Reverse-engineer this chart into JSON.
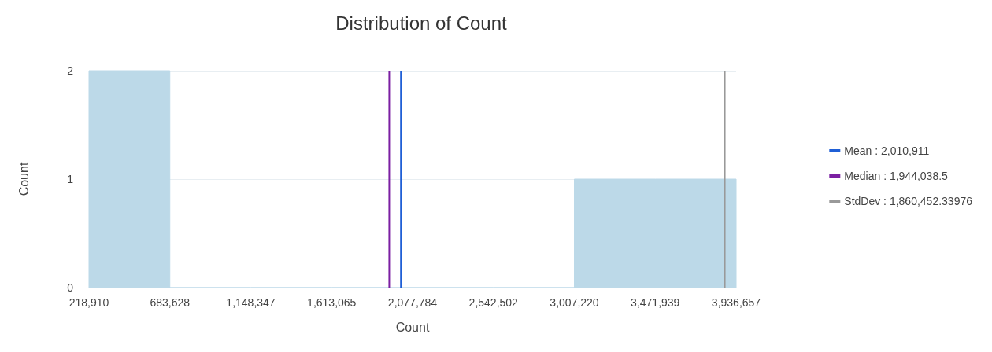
{
  "chart_data": {
    "type": "histogram",
    "title": "Distribution of Count",
    "xlabel": "Count",
    "ylabel": "Count",
    "bins": [
      218910,
      683628,
      1148347,
      1613065,
      2077784,
      2542502,
      3007220,
      3471939,
      3936657
    ],
    "values": [
      2,
      0,
      0,
      0,
      0,
      0,
      1,
      1
    ],
    "color": "#bcd9e8",
    "series": [
      {
        "type": "line",
        "name": "Mean : 2,010,911",
        "color": "#1f5fd6",
        "x": [
          2010911,
          2010911
        ],
        "values": [
          0,
          2
        ]
      },
      {
        "type": "line",
        "name": "Median : 1,944,038.5",
        "color": "#7b1fa2",
        "x": [
          1944038.5,
          1944038.5
        ],
        "values": [
          0,
          2
        ]
      },
      {
        "type": "line",
        "name": "StdDev : 1,860,452.33976",
        "color": "#999999",
        "x": [
          3871363.33976,
          3871363.33976
        ],
        "values": [
          0,
          2
        ]
      }
    ],
    "xlim": [
      218910,
      3936657
    ],
    "xticks": [
      {
        "value": 218910,
        "label": "218,910"
      },
      {
        "value": 683628,
        "label": "683,628"
      },
      {
        "value": 1148347,
        "label": "1,148,347"
      },
      {
        "value": 1613065,
        "label": "1,613,065"
      },
      {
        "value": 2077784,
        "label": "2,077,784"
      },
      {
        "value": 2542502,
        "label": "2,542,502"
      },
      {
        "value": 3007220,
        "label": "3,007,220"
      },
      {
        "value": 3471939,
        "label": "3,471,939"
      },
      {
        "value": 3936657,
        "label": "3,936,657"
      }
    ],
    "ylim": [
      0,
      2
    ],
    "yticks": [
      0,
      1,
      2
    ],
    "grid": "y",
    "legend": "right"
  }
}
